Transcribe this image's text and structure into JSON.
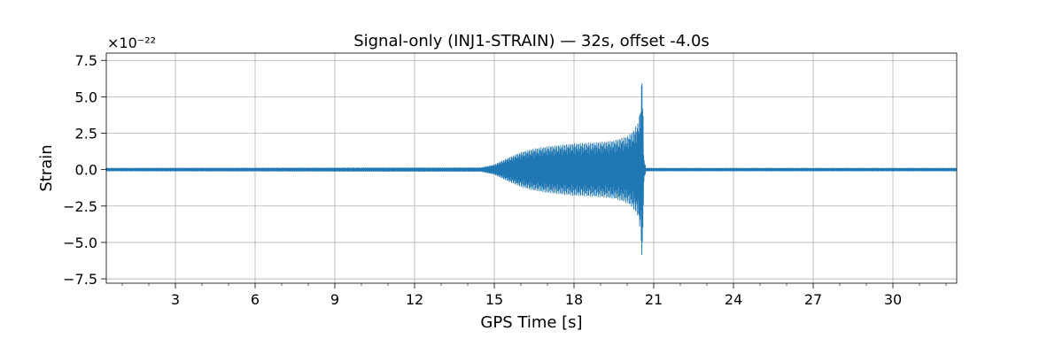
{
  "chart_data": {
    "type": "line",
    "title": "Signal-only (INJ1-STRAIN) — 32s, offset -4.0s",
    "xlabel": "GPS Time [s]",
    "ylabel": "Strain",
    "y_offset_label": "×10⁻²²",
    "xlim": [
      0.4,
      32.4
    ],
    "ylim": [
      -7.8,
      8.0
    ],
    "x_ticks": [
      3,
      6,
      9,
      12,
      15,
      18,
      21,
      24,
      27,
      30
    ],
    "x_tick_labels": [
      "3",
      "6",
      "9",
      "12",
      "15",
      "18",
      "21",
      "24",
      "27",
      "30"
    ],
    "y_ticks": [
      -7.5,
      -5.0,
      -2.5,
      0.0,
      2.5,
      5.0,
      7.5
    ],
    "y_tick_labels": [
      "−7.5",
      "−5.0",
      "−2.5",
      "0.0",
      "2.5",
      "5.0",
      "7.5"
    ],
    "grid": true,
    "series": [
      {
        "color": "#1f77b4",
        "envelope": {
          "x": [
            0.4,
            14.5,
            15.0,
            15.5,
            16.0,
            16.5,
            17.0,
            17.5,
            18.0,
            18.5,
            19.0,
            19.5,
            20.0,
            20.2,
            20.4,
            20.5,
            20.58,
            20.62,
            20.7,
            32.4
          ],
          "upper": [
            0.12,
            0.15,
            0.35,
            0.8,
            1.2,
            1.45,
            1.6,
            1.7,
            1.8,
            1.85,
            1.9,
            2.0,
            2.3,
            2.6,
            3.2,
            4.2,
            7.4,
            1.0,
            0.12,
            0.12
          ],
          "lower": [
            -0.12,
            -0.15,
            -0.35,
            -0.8,
            -1.2,
            -1.45,
            -1.6,
            -1.7,
            -1.8,
            -1.85,
            -1.9,
            -2.0,
            -2.3,
            -2.6,
            -3.2,
            -4.2,
            -7.0,
            -1.0,
            -0.12,
            -0.12
          ]
        }
      }
    ]
  }
}
